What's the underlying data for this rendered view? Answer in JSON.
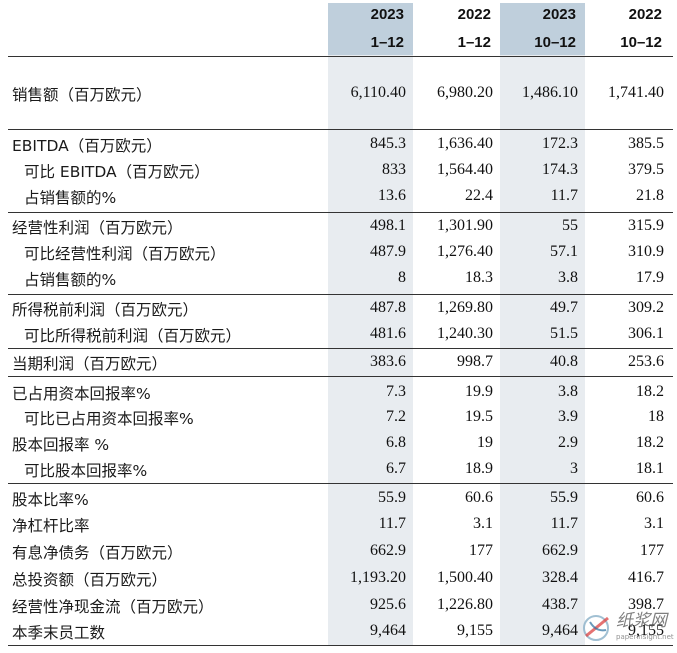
{
  "header": {
    "columns": [
      {
        "year": "2023",
        "period": "1–12"
      },
      {
        "year": "2022",
        "period": "1–12"
      },
      {
        "year": "2023",
        "period": "10–12"
      },
      {
        "year": "2022",
        "period": "10–12"
      }
    ]
  },
  "rows": [
    {
      "label": "销售额（百万欧元）",
      "values": [
        "6,110.40",
        "6,980.20",
        "1,486.10",
        "1,741.40"
      ]
    },
    {
      "label": "EBITDA（百万欧元）",
      "values": [
        "845.3",
        "1,636.40",
        "172.3",
        "385.5"
      ]
    },
    {
      "label": "可比 EBITDA（百万欧元）",
      "values": [
        "833",
        "1,564.40",
        "174.3",
        "379.5"
      ]
    },
    {
      "label": "占销售额的%",
      "values": [
        "13.6",
        "22.4",
        "11.7",
        "21.8"
      ]
    },
    {
      "label": "经营性利润（百万欧元）",
      "values": [
        "498.1",
        "1,301.90",
        "55",
        "315.9"
      ]
    },
    {
      "label": "可比经营性利润（百万欧元）",
      "values": [
        "487.9",
        "1,276.40",
        "57.1",
        "310.9"
      ]
    },
    {
      "label": "占销售额的%",
      "values": [
        "8",
        "18.3",
        "3.8",
        "17.9"
      ]
    },
    {
      "label": "所得税前利润（百万欧元）",
      "values": [
        "487.8",
        "1,269.80",
        "49.7",
        "309.2"
      ]
    },
    {
      "label": "可比所得税前利润（百万欧元）",
      "values": [
        "481.6",
        "1,240.30",
        "51.5",
        "306.1"
      ]
    },
    {
      "label": "当期利润（百万欧元）",
      "values": [
        "383.6",
        "998.7",
        "40.8",
        "253.6"
      ]
    },
    {
      "label": "已占用资本回报率%",
      "values": [
        "7.3",
        "19.9",
        "3.8",
        "18.2"
      ]
    },
    {
      "label": "可比已占用资本回报率%",
      "values": [
        "7.2",
        "19.5",
        "3.9",
        "18"
      ]
    },
    {
      "label": "股本回报率 %",
      "values": [
        "6.8",
        "19",
        "2.9",
        "18.2"
      ]
    },
    {
      "label": "可比股本回报率%",
      "values": [
        "6.7",
        "18.9",
        "3",
        "18.1"
      ]
    },
    {
      "label": "股本比率%",
      "values": [
        "55.9",
        "60.6",
        "55.9",
        "60.6"
      ]
    },
    {
      "label": "净杠杆比率",
      "values": [
        "11.7",
        "3.1",
        "11.7",
        "3.1"
      ]
    },
    {
      "label": "有息净债务（百万欧元）",
      "values": [
        "662.9",
        "177",
        "662.9",
        "177"
      ]
    },
    {
      "label": "总投资额（百万欧元）",
      "values": [
        "1,193.20",
        "1,500.40",
        "328.4",
        "416.7"
      ]
    },
    {
      "label": "经营性净现金流（百万欧元）",
      "values": [
        "925.6",
        "1,226.80",
        "438.7",
        "398.7"
      ]
    },
    {
      "label": "本季末员工数",
      "values": [
        "9,464",
        "9,155",
        "9,464",
        "9,155"
      ]
    }
  ],
  "watermark": {
    "name": "纸浆网",
    "site": "paperinsight.net"
  }
}
